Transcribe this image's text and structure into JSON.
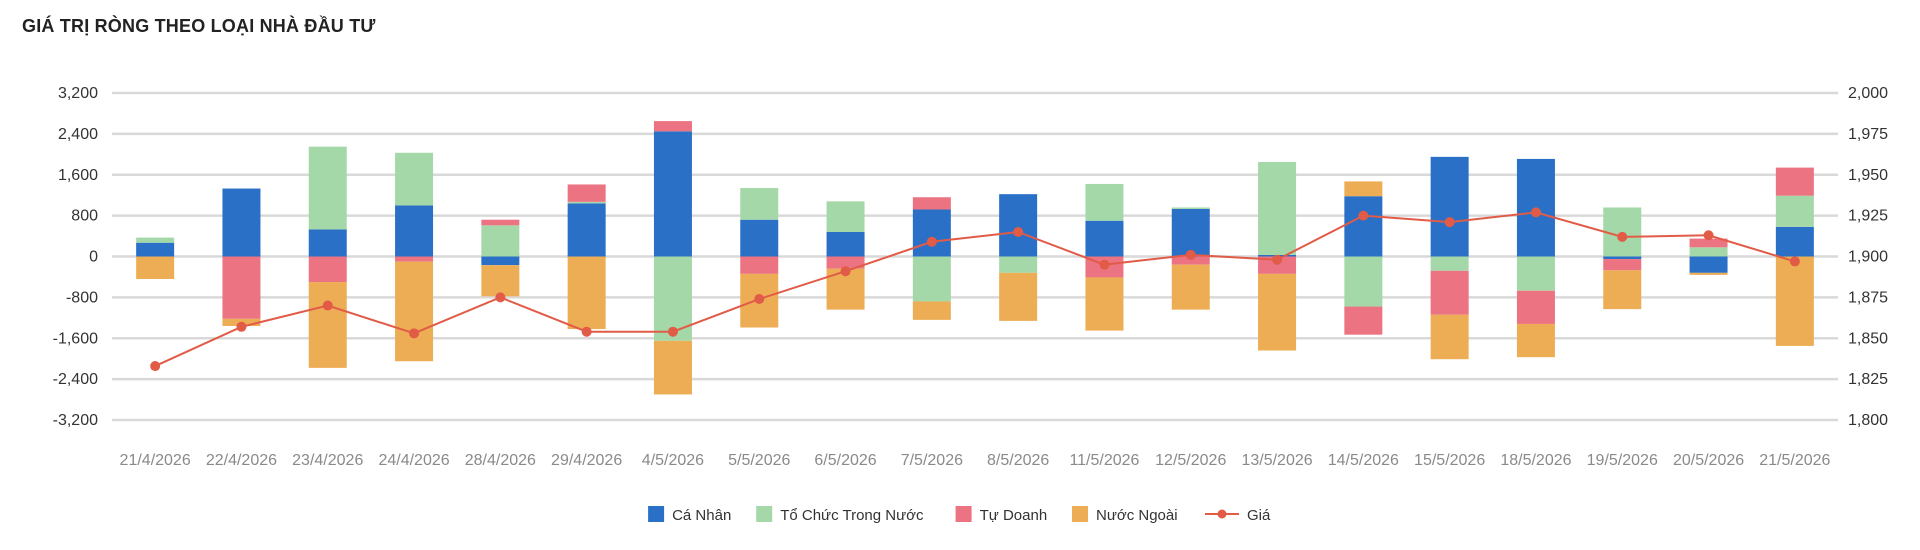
{
  "chart_data": {
    "type": "bar",
    "title": "GIÁ TRỊ RÒNG THEO LOẠI NHÀ ĐẦU TƯ",
    "categories": [
      "21/4/2026",
      "22/4/2026",
      "23/4/2026",
      "24/4/2026",
      "28/4/2026",
      "29/4/2026",
      "4/5/2026",
      "5/5/2026",
      "6/5/2026",
      "7/5/2026",
      "8/5/2026",
      "11/5/2026",
      "12/5/2026",
      "13/5/2026",
      "14/5/2026",
      "15/5/2026",
      "18/5/2026",
      "19/5/2026",
      "20/5/2026",
      "21/5/2026"
    ],
    "y_left": {
      "min": -3200,
      "max": 3200,
      "ticks": [
        "3,200",
        "2,400",
        "1,600",
        "800",
        "0",
        "-800",
        "-1,600",
        "-2,400",
        "-3,200"
      ]
    },
    "y_right": {
      "min": 1800,
      "max": 2000,
      "ticks": [
        "2,000",
        "1,975",
        "1,950",
        "1,925",
        "1,900",
        "1,875",
        "1,850",
        "1,825",
        "1,800"
      ]
    },
    "grid": true,
    "legend_position": "bottom",
    "series": [
      {
        "name": "Cá Nhân",
        "kind": "bar",
        "axis": "left",
        "color": "#2970C6",
        "values": [
          270,
          1330,
          530,
          1000,
          -170,
          1040,
          2450,
          720,
          480,
          920,
          1220,
          700,
          930,
          30,
          1180,
          1950,
          1910,
          -50,
          -320,
          580
        ]
      },
      {
        "name": "Tổ Chức Trong Nước",
        "kind": "bar",
        "axis": "left",
        "color": "#A5D8A8",
        "values": [
          100,
          0,
          1620,
          1030,
          610,
          30,
          -1650,
          620,
          600,
          -880,
          -320,
          720,
          30,
          1820,
          -980,
          -280,
          -670,
          960,
          180,
          610
        ]
      },
      {
        "name": "Tự Doanh",
        "kind": "bar",
        "axis": "left",
        "color": "#EC7382",
        "values": [
          0,
          -1220,
          -500,
          -100,
          110,
          340,
          200,
          -340,
          -240,
          240,
          0,
          -410,
          -160,
          -340,
          -550,
          -860,
          -650,
          -220,
          170,
          550
        ]
      },
      {
        "name": "Nước Ngoài",
        "kind": "bar",
        "axis": "left",
        "color": "#EDAD55",
        "values": [
          -440,
          -140,
          -1680,
          -1950,
          -610,
          -1420,
          -1050,
          -1050,
          -800,
          -360,
          -940,
          -1040,
          -880,
          -1500,
          290,
          -870,
          -650,
          -760,
          -40,
          -1750
        ]
      },
      {
        "name": "Giá",
        "kind": "line",
        "axis": "right",
        "color": "#E15B47",
        "values": [
          1833,
          1857,
          1870,
          1853,
          1875,
          1854,
          1854,
          1874,
          1891,
          1909,
          1915,
          1895,
          1901,
          1898,
          1925,
          1921,
          1927,
          1912,
          1913,
          1897
        ]
      }
    ]
  }
}
